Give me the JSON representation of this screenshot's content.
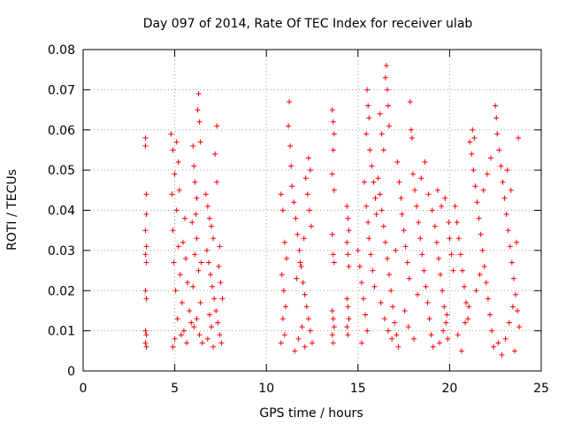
{
  "chart_data": {
    "type": "scatter",
    "title": "Day 097 of 2014, Rate Of TEC Index for receiver ulab",
    "xlabel": "GPS time / hours",
    "ylabel": "ROTI / TECUs",
    "xlim": [
      0,
      25
    ],
    "ylim": [
      0,
      0.08
    ],
    "xticks": [
      0,
      5,
      10,
      15,
      20,
      25
    ],
    "xtick_labels": [
      "0",
      "5",
      "10",
      "15",
      "20",
      "25"
    ],
    "yticks": [
      0,
      0.01,
      0.02,
      0.03,
      0.04,
      0.05,
      0.06,
      0.07,
      0.08
    ],
    "ytick_labels": [
      "0",
      "0.01",
      "0.02",
      "0.03",
      "0.04",
      "0.05",
      "0.06",
      "0.07",
      "0.08"
    ],
    "grid": true,
    "marker": "+",
    "color": "#ff0000",
    "series": [
      {
        "name": "ROTI",
        "points": [
          [
            3.4,
            0.058
          ],
          [
            3.4,
            0.056
          ],
          [
            3.45,
            0.044
          ],
          [
            3.45,
            0.039
          ],
          [
            3.4,
            0.035
          ],
          [
            3.45,
            0.031
          ],
          [
            3.4,
            0.029
          ],
          [
            3.45,
            0.027
          ],
          [
            3.4,
            0.02
          ],
          [
            3.45,
            0.018
          ],
          [
            3.4,
            0.01
          ],
          [
            3.45,
            0.009
          ],
          [
            3.4,
            0.007
          ],
          [
            3.45,
            0.006
          ],
          [
            4.8,
            0.059
          ],
          [
            4.9,
            0.055
          ],
          [
            5.0,
            0.049
          ],
          [
            4.85,
            0.044
          ],
          [
            5.1,
            0.04
          ],
          [
            4.9,
            0.035
          ],
          [
            5.2,
            0.031
          ],
          [
            4.95,
            0.027
          ],
          [
            5.3,
            0.024
          ],
          [
            5.05,
            0.02
          ],
          [
            5.4,
            0.017
          ],
          [
            5.15,
            0.013
          ],
          [
            5.5,
            0.01
          ],
          [
            5.0,
            0.008
          ],
          [
            4.9,
            0.006
          ],
          [
            5.25,
            0.045
          ],
          [
            5.55,
            0.038
          ],
          [
            5.6,
            0.028
          ],
          [
            5.7,
            0.022
          ],
          [
            5.8,
            0.015
          ],
          [
            5.9,
            0.012
          ],
          [
            5.35,
            0.009
          ],
          [
            5.65,
            0.007
          ],
          [
            5.45,
            0.032
          ],
          [
            5.2,
            0.052
          ],
          [
            5.1,
            0.057
          ],
          [
            6.0,
            0.056
          ],
          [
            6.05,
            0.051
          ],
          [
            6.1,
            0.047
          ],
          [
            6.2,
            0.043
          ],
          [
            6.3,
            0.069
          ],
          [
            6.25,
            0.065
          ],
          [
            6.35,
            0.062
          ],
          [
            6.4,
            0.057
          ],
          [
            6.15,
            0.039
          ],
          [
            6.2,
            0.033
          ],
          [
            6.1,
            0.029
          ],
          [
            6.3,
            0.025
          ],
          [
            6.0,
            0.021
          ],
          [
            6.4,
            0.017
          ],
          [
            6.2,
            0.013
          ],
          [
            6.35,
            0.009
          ],
          [
            6.5,
            0.007
          ],
          [
            6.05,
            0.011
          ],
          [
            6.45,
            0.027
          ],
          [
            5.95,
            0.037
          ],
          [
            6.7,
            0.044
          ],
          [
            6.8,
            0.041
          ],
          [
            6.9,
            0.038
          ],
          [
            7.0,
            0.036
          ],
          [
            7.1,
            0.033
          ],
          [
            6.75,
            0.03
          ],
          [
            6.85,
            0.027
          ],
          [
            6.95,
            0.024
          ],
          [
            7.05,
            0.021
          ],
          [
            7.15,
            0.018
          ],
          [
            7.25,
            0.015
          ],
          [
            7.35,
            0.012
          ],
          [
            7.45,
            0.009
          ],
          [
            7.55,
            0.007
          ],
          [
            7.2,
            0.054
          ],
          [
            7.3,
            0.061
          ],
          [
            7.4,
            0.026
          ],
          [
            7.5,
            0.022
          ],
          [
            7.6,
            0.018
          ],
          [
            6.9,
            0.014
          ],
          [
            7.0,
            0.011
          ],
          [
            6.8,
            0.008
          ],
          [
            7.1,
            0.006
          ],
          [
            7.3,
            0.047
          ],
          [
            7.45,
            0.031
          ],
          [
            10.8,
            0.044
          ],
          [
            10.9,
            0.04
          ],
          [
            11.0,
            0.032
          ],
          [
            11.1,
            0.028
          ],
          [
            10.85,
            0.024
          ],
          [
            10.95,
            0.02
          ],
          [
            11.05,
            0.016
          ],
          [
            10.9,
            0.013
          ],
          [
            11.0,
            0.009
          ],
          [
            10.8,
            0.007
          ],
          [
            11.2,
            0.061
          ],
          [
            11.25,
            0.067
          ],
          [
            11.3,
            0.056
          ],
          [
            11.35,
            0.051
          ],
          [
            11.4,
            0.046
          ],
          [
            11.5,
            0.042
          ],
          [
            11.6,
            0.038
          ],
          [
            11.7,
            0.034
          ],
          [
            11.8,
            0.03
          ],
          [
            11.9,
            0.026
          ],
          [
            12.0,
            0.022
          ],
          [
            12.1,
            0.019
          ],
          [
            12.2,
            0.016
          ],
          [
            12.3,
            0.013
          ],
          [
            12.4,
            0.01
          ],
          [
            12.5,
            0.007
          ],
          [
            11.55,
            0.005
          ],
          [
            11.75,
            0.008
          ],
          [
            11.95,
            0.011
          ],
          [
            12.15,
            0.048
          ],
          [
            12.25,
            0.044
          ],
          [
            12.35,
            0.04
          ],
          [
            12.45,
            0.036
          ],
          [
            12.05,
            0.033
          ],
          [
            11.85,
            0.027
          ],
          [
            11.65,
            0.023
          ],
          [
            12.3,
            0.053
          ],
          [
            12.4,
            0.05
          ],
          [
            12.1,
            0.006
          ],
          [
            13.6,
            0.065
          ],
          [
            13.65,
            0.062
          ],
          [
            13.7,
            0.059
          ],
          [
            13.65,
            0.055
          ],
          [
            13.6,
            0.049
          ],
          [
            13.7,
            0.045
          ],
          [
            13.6,
            0.034
          ],
          [
            13.65,
            0.029
          ],
          [
            13.7,
            0.027
          ],
          [
            13.6,
            0.015
          ],
          [
            13.65,
            0.013
          ],
          [
            13.7,
            0.011
          ],
          [
            13.6,
            0.009
          ],
          [
            13.65,
            0.007
          ],
          [
            14.4,
            0.041
          ],
          [
            14.45,
            0.038
          ],
          [
            14.5,
            0.035
          ],
          [
            14.4,
            0.032
          ],
          [
            14.45,
            0.029
          ],
          [
            14.5,
            0.026
          ],
          [
            14.4,
            0.018
          ],
          [
            14.45,
            0.016
          ],
          [
            14.5,
            0.013
          ],
          [
            14.4,
            0.011
          ],
          [
            14.45,
            0.009
          ],
          [
            15.0,
            0.03
          ],
          [
            15.1,
            0.026
          ],
          [
            15.2,
            0.022
          ],
          [
            15.3,
            0.018
          ],
          [
            15.4,
            0.014
          ],
          [
            15.5,
            0.01
          ],
          [
            15.2,
            0.007
          ],
          [
            15.35,
            0.047
          ],
          [
            15.45,
            0.041
          ],
          [
            15.55,
            0.037
          ],
          [
            15.6,
            0.033
          ],
          [
            15.7,
            0.029
          ],
          [
            15.8,
            0.025
          ],
          [
            15.9,
            0.021
          ],
          [
            15.5,
            0.07
          ],
          [
            15.55,
            0.066
          ],
          [
            15.6,
            0.063
          ],
          [
            15.45,
            0.059
          ],
          [
            15.65,
            0.055
          ],
          [
            15.75,
            0.051
          ],
          [
            15.85,
            0.047
          ],
          [
            15.95,
            0.043
          ],
          [
            16.0,
            0.039
          ],
          [
            16.2,
            0.064
          ],
          [
            16.3,
            0.059
          ],
          [
            16.4,
            0.055
          ],
          [
            16.5,
            0.073
          ],
          [
            16.55,
            0.076
          ],
          [
            16.6,
            0.07
          ],
          [
            16.65,
            0.066
          ],
          [
            16.7,
            0.061
          ],
          [
            16.1,
            0.048
          ],
          [
            16.2,
            0.044
          ],
          [
            16.3,
            0.04
          ],
          [
            16.4,
            0.036
          ],
          [
            16.5,
            0.032
          ],
          [
            16.6,
            0.028
          ],
          [
            16.7,
            0.024
          ],
          [
            16.8,
            0.02
          ],
          [
            16.9,
            0.016
          ],
          [
            17.0,
            0.012
          ],
          [
            17.1,
            0.009
          ],
          [
            17.2,
            0.006
          ],
          [
            16.25,
            0.017
          ],
          [
            16.45,
            0.013
          ],
          [
            16.65,
            0.01
          ],
          [
            16.85,
            0.008
          ],
          [
            17.05,
            0.03
          ],
          [
            17.15,
            0.052
          ],
          [
            17.25,
            0.047
          ],
          [
            17.35,
            0.043
          ],
          [
            17.4,
            0.039
          ],
          [
            17.5,
            0.035
          ],
          [
            17.6,
            0.031
          ],
          [
            17.7,
            0.027
          ],
          [
            17.8,
            0.023
          ],
          [
            17.9,
            0.06
          ],
          [
            17.85,
            0.067
          ],
          [
            17.95,
            0.058
          ],
          [
            18.0,
            0.049
          ],
          [
            18.1,
            0.045
          ],
          [
            18.2,
            0.041
          ],
          [
            18.3,
            0.037
          ],
          [
            18.4,
            0.033
          ],
          [
            18.5,
            0.029
          ],
          [
            18.6,
            0.025
          ],
          [
            18.7,
            0.021
          ],
          [
            18.8,
            0.017
          ],
          [
            18.9,
            0.013
          ],
          [
            19.0,
            0.009
          ],
          [
            19.1,
            0.006
          ],
          [
            17.55,
            0.015
          ],
          [
            17.75,
            0.011
          ],
          [
            18.05,
            0.008
          ],
          [
            18.25,
            0.019
          ],
          [
            18.45,
            0.048
          ],
          [
            18.65,
            0.052
          ],
          [
            18.85,
            0.044
          ],
          [
            19.05,
            0.04
          ],
          [
            19.2,
            0.036
          ],
          [
            19.3,
            0.032
          ],
          [
            19.4,
            0.028
          ],
          [
            19.5,
            0.024
          ],
          [
            19.6,
            0.02
          ],
          [
            19.7,
            0.016
          ],
          [
            19.8,
            0.012
          ],
          [
            19.9,
            0.008
          ],
          [
            19.35,
            0.045
          ],
          [
            19.55,
            0.041
          ],
          [
            19.75,
            0.043
          ],
          [
            19.95,
            0.037
          ],
          [
            20.0,
            0.033
          ],
          [
            20.1,
            0.029
          ],
          [
            20.2,
            0.025
          ],
          [
            19.45,
            0.007
          ],
          [
            19.65,
            0.01
          ],
          [
            19.85,
            0.014
          ],
          [
            20.3,
            0.041
          ],
          [
            20.4,
            0.037
          ],
          [
            20.5,
            0.033
          ],
          [
            20.6,
            0.029
          ],
          [
            20.7,
            0.025
          ],
          [
            20.8,
            0.021
          ],
          [
            20.9,
            0.017
          ],
          [
            21.0,
            0.013
          ],
          [
            21.1,
            0.057
          ],
          [
            21.2,
            0.054
          ],
          [
            21.3,
            0.05
          ],
          [
            21.4,
            0.046
          ],
          [
            21.5,
            0.042
          ],
          [
            21.6,
            0.038
          ],
          [
            21.7,
            0.034
          ],
          [
            21.8,
            0.03
          ],
          [
            21.9,
            0.026
          ],
          [
            22.0,
            0.022
          ],
          [
            22.1,
            0.018
          ],
          [
            22.2,
            0.014
          ],
          [
            22.3,
            0.01
          ],
          [
            22.4,
            0.006
          ],
          [
            21.25,
            0.06
          ],
          [
            21.35,
            0.058
          ],
          [
            20.45,
            0.009
          ],
          [
            20.65,
            0.005
          ],
          [
            20.85,
            0.012
          ],
          [
            21.05,
            0.016
          ],
          [
            21.45,
            0.02
          ],
          [
            21.65,
            0.024
          ],
          [
            21.85,
            0.045
          ],
          [
            22.05,
            0.049
          ],
          [
            22.25,
            0.053
          ],
          [
            22.5,
            0.066
          ],
          [
            22.55,
            0.063
          ],
          [
            22.6,
            0.059
          ],
          [
            22.7,
            0.055
          ],
          [
            22.8,
            0.051
          ],
          [
            22.9,
            0.047
          ],
          [
            23.0,
            0.043
          ],
          [
            23.1,
            0.039
          ],
          [
            23.2,
            0.035
          ],
          [
            23.3,
            0.031
          ],
          [
            23.4,
            0.027
          ],
          [
            23.5,
            0.023
          ],
          [
            23.6,
            0.019
          ],
          [
            23.7,
            0.015
          ],
          [
            23.8,
            0.011
          ],
          [
            22.65,
            0.007
          ],
          [
            22.85,
            0.004
          ],
          [
            23.05,
            0.008
          ],
          [
            23.25,
            0.012
          ],
          [
            23.45,
            0.016
          ],
          [
            23.65,
            0.032
          ],
          [
            23.75,
            0.058
          ],
          [
            23.55,
            0.005
          ],
          [
            23.35,
            0.045
          ],
          [
            23.15,
            0.05
          ]
        ]
      }
    ]
  }
}
